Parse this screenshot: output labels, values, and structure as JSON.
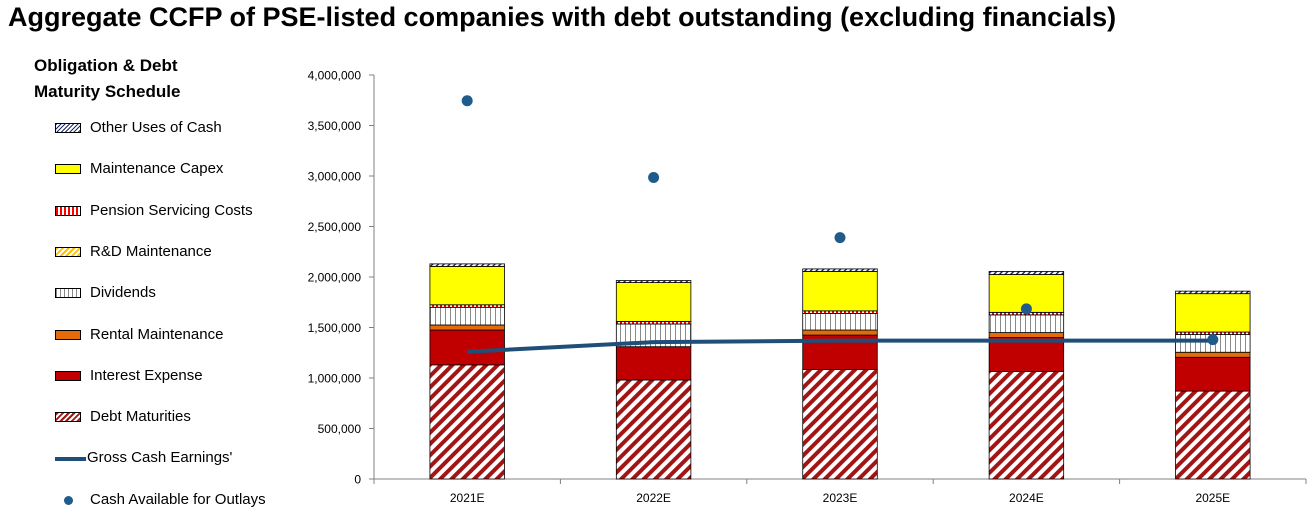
{
  "title": "Aggregate CCFP of PSE-listed companies with debt outstanding (excluding financials)",
  "legend_title": "Obligation & Debt\nMaturity Schedule",
  "chart_data": {
    "type": "bar",
    "stacked": true,
    "categories": [
      "2021E",
      "2022E",
      "2023E",
      "2024E",
      "2025E"
    ],
    "ylim": [
      0,
      4000000
    ],
    "yticks": [
      0,
      500000,
      1000000,
      1500000,
      2000000,
      2500000,
      3000000,
      3500000,
      4000000
    ],
    "ytick_labels": [
      "0",
      "500,000",
      "1,000,000",
      "1,500,000",
      "2,000,000",
      "2,500,000",
      "3,000,000",
      "3,500,000",
      "4,000,000"
    ],
    "grid": false,
    "legend_position": "left",
    "series": [
      {
        "name": "Debt Maturities",
        "kind": "bar",
        "pattern": "diag-red",
        "color": "#a31515",
        "values": [
          1130000,
          980000,
          1085000,
          1065000,
          870000
        ]
      },
      {
        "name": "Interest Expense",
        "kind": "bar",
        "pattern": "solid",
        "color": "#c00000",
        "values": [
          345000,
          330000,
          340000,
          335000,
          335000
        ]
      },
      {
        "name": "Rental Maintenance",
        "kind": "bar",
        "pattern": "solid",
        "color": "#e36c09",
        "values": [
          50000,
          0,
          50000,
          50000,
          50000
        ]
      },
      {
        "name": "Dividends",
        "kind": "bar",
        "pattern": "vert-lines",
        "color": "#9a9a9a",
        "values": [
          175000,
          225000,
          165000,
          175000,
          175000
        ]
      },
      {
        "name": "R&D Maintenance",
        "kind": "bar",
        "pattern": "diag-yellow",
        "color": "#ffc000",
        "values": [
          0,
          0,
          0,
          0,
          0
        ]
      },
      {
        "name": "Pension Servicing Costs",
        "kind": "bar",
        "pattern": "vert-red",
        "color": "#ff0000",
        "values": [
          25000,
          25000,
          25000,
          25000,
          25000
        ]
      },
      {
        "name": "Maintenance Capex",
        "kind": "bar",
        "pattern": "solid",
        "color": "#ffff00",
        "values": [
          380000,
          385000,
          390000,
          375000,
          380000
        ]
      },
      {
        "name": "Other Uses of Cash",
        "kind": "bar",
        "pattern": "diag-navy",
        "color": "#1f2b6b",
        "values": [
          25000,
          20000,
          25000,
          30000,
          25000
        ]
      },
      {
        "name": "Gross Cash Earnings'",
        "kind": "line",
        "color": "#1f4e79",
        "values": [
          1260000,
          1355000,
          1370000,
          1370000,
          1370000
        ]
      },
      {
        "name": "Cash Available for Outlays",
        "kind": "scatter",
        "color": "#1f5c8b",
        "values": [
          3745000,
          2985000,
          2390000,
          1685000,
          1380000
        ]
      }
    ],
    "legend_order": [
      "Other Uses of Cash",
      "Maintenance Capex",
      "Pension Servicing Costs",
      "R&D Maintenance",
      "Dividends",
      "Rental Maintenance",
      "Interest Expense",
      "Debt Maturities",
      "Gross Cash Earnings'",
      "Cash Available for Outlays"
    ]
  }
}
